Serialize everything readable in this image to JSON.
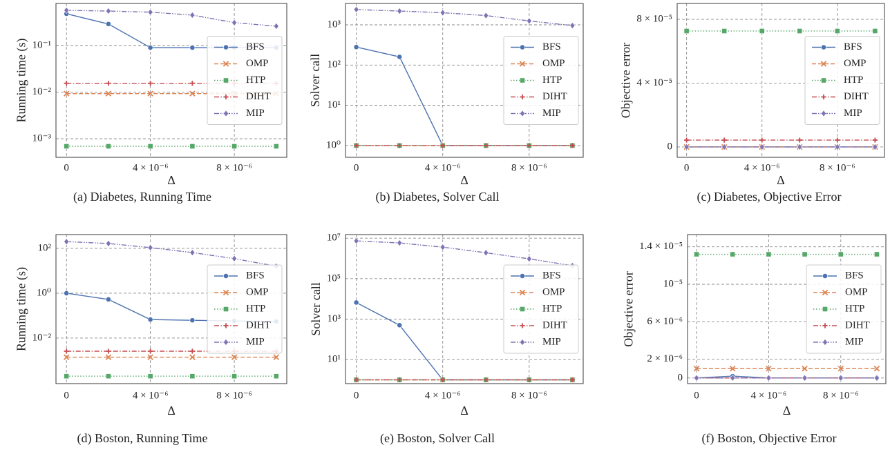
{
  "chart_data": [
    {
      "type": "line",
      "caption": "(a) Diabetes, Running Time",
      "xlabel": "Δ",
      "ylabel": "Running time (s)",
      "x": [
        0,
        2e-06,
        4e-06,
        6e-06,
        8e-06,
        1e-05
      ],
      "xlim": [
        -5e-07,
        1.05e-05
      ],
      "xticks": [
        0,
        {
          "value": 4e-06,
          "label": "4 × 10⁻⁶"
        },
        {
          "value": 8e-06,
          "label": "8 × 10⁻⁶"
        }
      ],
      "yscale": "log",
      "ylim": [
        0.0004,
        0.8
      ],
      "yticks": [
        {
          "value": 0.001,
          "label": "10⁻³"
        },
        {
          "value": 0.01,
          "label": "10⁻²"
        },
        {
          "value": 0.1,
          "label": "10⁻¹"
        }
      ],
      "grid": true,
      "legend": "center right",
      "series": [
        {
          "name": "BFS",
          "color": "#4c72b0",
          "linestyle": "solid",
          "marker": "circle",
          "values": [
            0.48,
            0.29,
            0.09,
            0.09,
            0.09,
            0.09
          ]
        },
        {
          "name": "OMP",
          "color": "#dd8452",
          "linestyle": "dashed",
          "marker": "x",
          "values": [
            0.0093,
            0.0093,
            0.0093,
            0.0093,
            0.0093,
            0.0093
          ]
        },
        {
          "name": "HTP",
          "color": "#55a868",
          "linestyle": "dotted",
          "marker": "square",
          "values": [
            0.00069,
            0.00069,
            0.00069,
            0.00069,
            0.00069,
            0.00069
          ]
        },
        {
          "name": "DIHT",
          "color": "#c44e52",
          "linestyle": "dashdot",
          "marker": "plus",
          "values": [
            0.0155,
            0.0155,
            0.0155,
            0.0155,
            0.0155,
            0.0155
          ]
        },
        {
          "name": "MIP",
          "color": "#8172b3",
          "linestyle": "dashdotdot",
          "marker": "diamond",
          "values": [
            0.57,
            0.55,
            0.52,
            0.45,
            0.31,
            0.26
          ]
        }
      ]
    },
    {
      "type": "line",
      "caption": "(b) Diabetes, Solver Call",
      "xlabel": "Δ",
      "ylabel": "Solver call",
      "x": [
        0,
        2e-06,
        4e-06,
        6e-06,
        8e-06,
        1e-05
      ],
      "xlim": [
        -5e-07,
        1.05e-05
      ],
      "xticks": [
        0,
        {
          "value": 4e-06,
          "label": "4 × 10⁻⁶"
        },
        {
          "value": 8e-06,
          "label": "8 × 10⁻⁶"
        }
      ],
      "yscale": "log",
      "ylim": [
        0.51,
        3400
      ],
      "yticks": [
        {
          "value": 1,
          "label": "10⁰"
        },
        {
          "value": 10,
          "label": "10¹"
        },
        {
          "value": 100,
          "label": "10²"
        },
        {
          "value": 1000,
          "label": "10³"
        }
      ],
      "grid": true,
      "legend": "center right",
      "series": [
        {
          "name": "BFS",
          "color": "#4c72b0",
          "linestyle": "solid",
          "marker": "circle",
          "values": [
            280,
            160,
            1,
            1,
            1,
            1
          ]
        },
        {
          "name": "OMP",
          "color": "#dd8452",
          "linestyle": "dashed",
          "marker": "x",
          "values": [
            1,
            1,
            1,
            1,
            1,
            1
          ]
        },
        {
          "name": "HTP",
          "color": "#55a868",
          "linestyle": "dotted",
          "marker": "square",
          "values": [
            1,
            1,
            1,
            1,
            1,
            1
          ]
        },
        {
          "name": "DIHT",
          "color": "#c44e52",
          "linestyle": "dashdot",
          "marker": "plus",
          "values": [
            1,
            1,
            1,
            1,
            1,
            1
          ]
        },
        {
          "name": "MIP",
          "color": "#8172b3",
          "linestyle": "dashdotdot",
          "marker": "diamond",
          "values": [
            2400,
            2200,
            2000,
            1700,
            1250,
            960
          ]
        }
      ]
    },
    {
      "type": "line",
      "caption": "(c) Diabetes, Objective Error",
      "xlabel": "Δ",
      "ylabel": "Objective error",
      "x": [
        0,
        2e-06,
        4e-06,
        6e-06,
        8e-06,
        1e-05
      ],
      "xlim": [
        -5e-07,
        1.05e-05
      ],
      "xticks": [
        0,
        {
          "value": 4e-06,
          "label": "4 × 10⁻⁶"
        },
        {
          "value": 8e-06,
          "label": "8 × 10⁻⁶"
        }
      ],
      "yscale": "linear",
      "ylim": [
        -6.5e-06,
        9e-05
      ],
      "yticks": [
        0,
        {
          "value": 4e-05,
          "label": "4 × 10⁻⁵"
        },
        {
          "value": 8e-05,
          "label": "8 × 10⁻⁵"
        }
      ],
      "grid": true,
      "legend": "center right",
      "series": [
        {
          "name": "BFS",
          "color": "#4c72b0",
          "linestyle": "solid",
          "marker": "circle",
          "values": [
            0,
            0,
            0,
            0,
            0,
            0
          ]
        },
        {
          "name": "OMP",
          "color": "#dd8452",
          "linestyle": "dashed",
          "marker": "x",
          "values": [
            0,
            0,
            0,
            0,
            0,
            0
          ]
        },
        {
          "name": "HTP",
          "color": "#55a868",
          "linestyle": "dotted",
          "marker": "square",
          "values": [
            7.27e-05,
            7.27e-05,
            7.27e-05,
            7.27e-05,
            7.27e-05,
            7.27e-05
          ]
        },
        {
          "name": "DIHT",
          "color": "#c44e52",
          "linestyle": "dashdot",
          "marker": "plus",
          "values": [
            4.3e-06,
            4.3e-06,
            4.3e-06,
            4.3e-06,
            4.3e-06,
            4.3e-06
          ]
        },
        {
          "name": "MIP",
          "color": "#8172b3",
          "linestyle": "dashdotdot",
          "marker": "diamond",
          "values": [
            0,
            0,
            0,
            0,
            0,
            0
          ]
        }
      ]
    },
    {
      "type": "line",
      "caption": "(d) Boston, Running Time",
      "xlabel": "Δ",
      "ylabel": "Running time (s)",
      "x": [
        0,
        2e-06,
        4e-06,
        6e-06,
        8e-06,
        1e-05
      ],
      "xlim": [
        -5e-07,
        1.05e-05
      ],
      "xticks": [
        0,
        {
          "value": 4e-06,
          "label": "4 × 10⁻⁶"
        },
        {
          "value": 8e-06,
          "label": "8 × 10⁻⁶"
        }
      ],
      "yscale": "log",
      "ylim": [
        9.3e-05,
        412
      ],
      "yticks": [
        {
          "value": 0.01,
          "label": "10⁻²"
        },
        {
          "value": 1,
          "label": "10⁰"
        },
        {
          "value": 100,
          "label": "10²"
        }
      ],
      "grid": true,
      "legend": "center right",
      "series": [
        {
          "name": "BFS",
          "color": "#4c72b0",
          "linestyle": "solid",
          "marker": "circle",
          "values": [
            1.0,
            0.53,
            0.067,
            0.062,
            0.058,
            0.055
          ]
        },
        {
          "name": "OMP",
          "color": "#dd8452",
          "linestyle": "dashed",
          "marker": "x",
          "values": [
            0.0014,
            0.0014,
            0.0014,
            0.0014,
            0.0014,
            0.0014
          ]
        },
        {
          "name": "HTP",
          "color": "#55a868",
          "linestyle": "dotted",
          "marker": "square",
          "values": [
            0.0002,
            0.0002,
            0.0002,
            0.0002,
            0.0002,
            0.0002
          ]
        },
        {
          "name": "DIHT",
          "color": "#c44e52",
          "linestyle": "dashdot",
          "marker": "plus",
          "values": [
            0.0026,
            0.0026,
            0.0026,
            0.0026,
            0.0026,
            0.0026
          ]
        },
        {
          "name": "MIP",
          "color": "#8172b3",
          "linestyle": "dashdotdot",
          "marker": "diamond",
          "values": [
            200,
            165,
            108,
            65,
            35,
            16
          ]
        }
      ]
    },
    {
      "type": "line",
      "caption": "(e) Boston, Solver Call",
      "xlabel": "Δ",
      "ylabel": "Solver call",
      "x": [
        0,
        2e-06,
        4e-06,
        6e-06,
        8e-06,
        1e-05
      ],
      "xlim": [
        -5e-07,
        1.05e-05
      ],
      "xticks": [
        0,
        {
          "value": 4e-06,
          "label": "4 × 10⁻⁶"
        },
        {
          "value": 8e-06,
          "label": "8 × 10⁻⁶"
        }
      ],
      "yscale": "log",
      "ylim": [
        0.65,
        15000000
      ],
      "yticks": [
        {
          "value": 10,
          "label": "10¹"
        },
        {
          "value": 1000,
          "label": "10³"
        },
        {
          "value": 100000,
          "label": "10⁵"
        },
        {
          "value": 10000000,
          "label": "10⁷"
        }
      ],
      "grid": true,
      "legend": "center right",
      "series": [
        {
          "name": "BFS",
          "color": "#4c72b0",
          "linestyle": "solid",
          "marker": "circle",
          "values": [
            6600,
            500,
            1,
            1,
            1,
            1
          ]
        },
        {
          "name": "OMP",
          "color": "#dd8452",
          "linestyle": "dashed",
          "marker": "x",
          "values": [
            1,
            1,
            1,
            1,
            1,
            1
          ]
        },
        {
          "name": "HTP",
          "color": "#55a868",
          "linestyle": "dotted",
          "marker": "square",
          "values": [
            1,
            1,
            1,
            1,
            1,
            1
          ]
        },
        {
          "name": "DIHT",
          "color": "#c44e52",
          "linestyle": "dashdot",
          "marker": "plus",
          "values": [
            1,
            1,
            1,
            1,
            1,
            1
          ]
        },
        {
          "name": "MIP",
          "color": "#8172b3",
          "linestyle": "dashdotdot",
          "marker": "diamond",
          "values": [
            7300000,
            5800000,
            3600000,
            1900000,
            950000,
            440000
          ]
        }
      ]
    },
    {
      "type": "line",
      "caption": "(f) Boston, Objective Error",
      "xlabel": "Δ",
      "ylabel": "Objective error",
      "x": [
        0,
        2e-06,
        4e-06,
        6e-06,
        8e-06,
        1e-05
      ],
      "xlim": [
        -5e-07,
        1.05e-05
      ],
      "xticks": [
        0,
        {
          "value": 4e-06,
          "label": "4 × 10⁻⁶"
        },
        {
          "value": 8e-06,
          "label": "8 × 10⁻⁶"
        }
      ],
      "yscale": "linear",
      "ylim": [
        -6e-07,
        1.53e-05
      ],
      "yticks": [
        0,
        {
          "value": 2e-06,
          "label": "2 × 10⁻⁶"
        },
        {
          "value": 6e-06,
          "label": "6 × 10⁻⁶"
        },
        {
          "value": 1e-05,
          "label": "10⁻⁵"
        },
        {
          "value": 1.4e-05,
          "label": "1.4 × 10⁻⁵"
        }
      ],
      "grid": true,
      "legend": "center right",
      "series": [
        {
          "name": "BFS",
          "color": "#4c72b0",
          "linestyle": "solid",
          "marker": "circle",
          "values": [
            0,
            2e-07,
            0,
            0,
            0,
            0
          ]
        },
        {
          "name": "OMP",
          "color": "#dd8452",
          "linestyle": "dashed",
          "marker": "x",
          "values": [
            1e-06,
            1e-06,
            1e-06,
            1e-06,
            1e-06,
            1e-06
          ]
        },
        {
          "name": "HTP",
          "color": "#55a868",
          "linestyle": "dotted",
          "marker": "square",
          "values": [
            1.32e-05,
            1.32e-05,
            1.32e-05,
            1.32e-05,
            1.32e-05,
            1.32e-05
          ]
        },
        {
          "name": "DIHT",
          "color": "#c44e52",
          "linestyle": "dashdot",
          "marker": "plus",
          "values": [
            0,
            0,
            0,
            0,
            0,
            0
          ]
        },
        {
          "name": "MIP",
          "color": "#8172b3",
          "linestyle": "dashdotdot",
          "marker": "diamond",
          "values": [
            0,
            0,
            0,
            0,
            0,
            0
          ]
        }
      ]
    }
  ]
}
